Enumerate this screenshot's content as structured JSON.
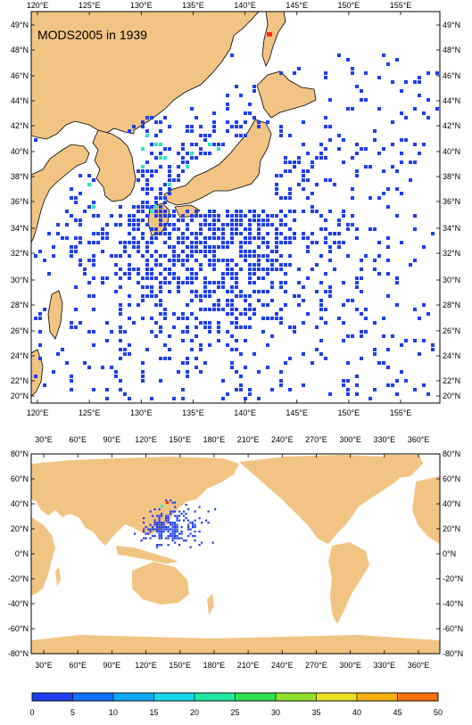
{
  "title": "MODS2005 in 1939",
  "colors": {
    "land": "#f2c483",
    "ocean": "#ffffff",
    "frame": "#000000",
    "obs_primary": "#1e3ef0",
    "obs_coast": "#2ee0c8",
    "obs_hot": "#ff2a14"
  },
  "top_map": {
    "lon_labels": [
      "120°E",
      "125°E",
      "130°E",
      "135°E",
      "140°E",
      "145°E",
      "150°E",
      "155°E"
    ],
    "lat_labels": [
      "49°N",
      "48°N",
      "46°N",
      "44°N",
      "42°N",
      "40°N",
      "38°N",
      "36°N",
      "34°N",
      "32°N",
      "30°N",
      "28°N",
      "26°N",
      "24°N",
      "22°N",
      "20°N"
    ],
    "lon_range": [
      119.5,
      157.5
    ],
    "lat_range": [
      18.5,
      49.5
    ]
  },
  "bottom_map": {
    "lon_labels": [
      "30°E",
      "60°E",
      "90°E",
      "120°E",
      "150°E",
      "180°E",
      "210°E",
      "240°E",
      "270°E",
      "300°E",
      "330°E",
      "360°E"
    ],
    "lat_labels": [
      "80°N",
      "60°N",
      "40°N",
      "20°N",
      "0°N",
      "-20°N",
      "-40°N",
      "-60°N",
      "-80°N"
    ],
    "lon_range": [
      20,
      380
    ],
    "lat_range": [
      -80,
      80
    ]
  },
  "colorbar": {
    "tick_labels": [
      "0",
      "5",
      "10",
      "15",
      "20",
      "25",
      "30",
      "35",
      "40",
      "45",
      "50"
    ],
    "colors": [
      "#1e3ef0",
      "#1070ff",
      "#10a8f8",
      "#18d8e8",
      "#20e8a0",
      "#30e050",
      "#90e030",
      "#e8e020",
      "#f8b010",
      "#f87010",
      "#e83010"
    ]
  }
}
